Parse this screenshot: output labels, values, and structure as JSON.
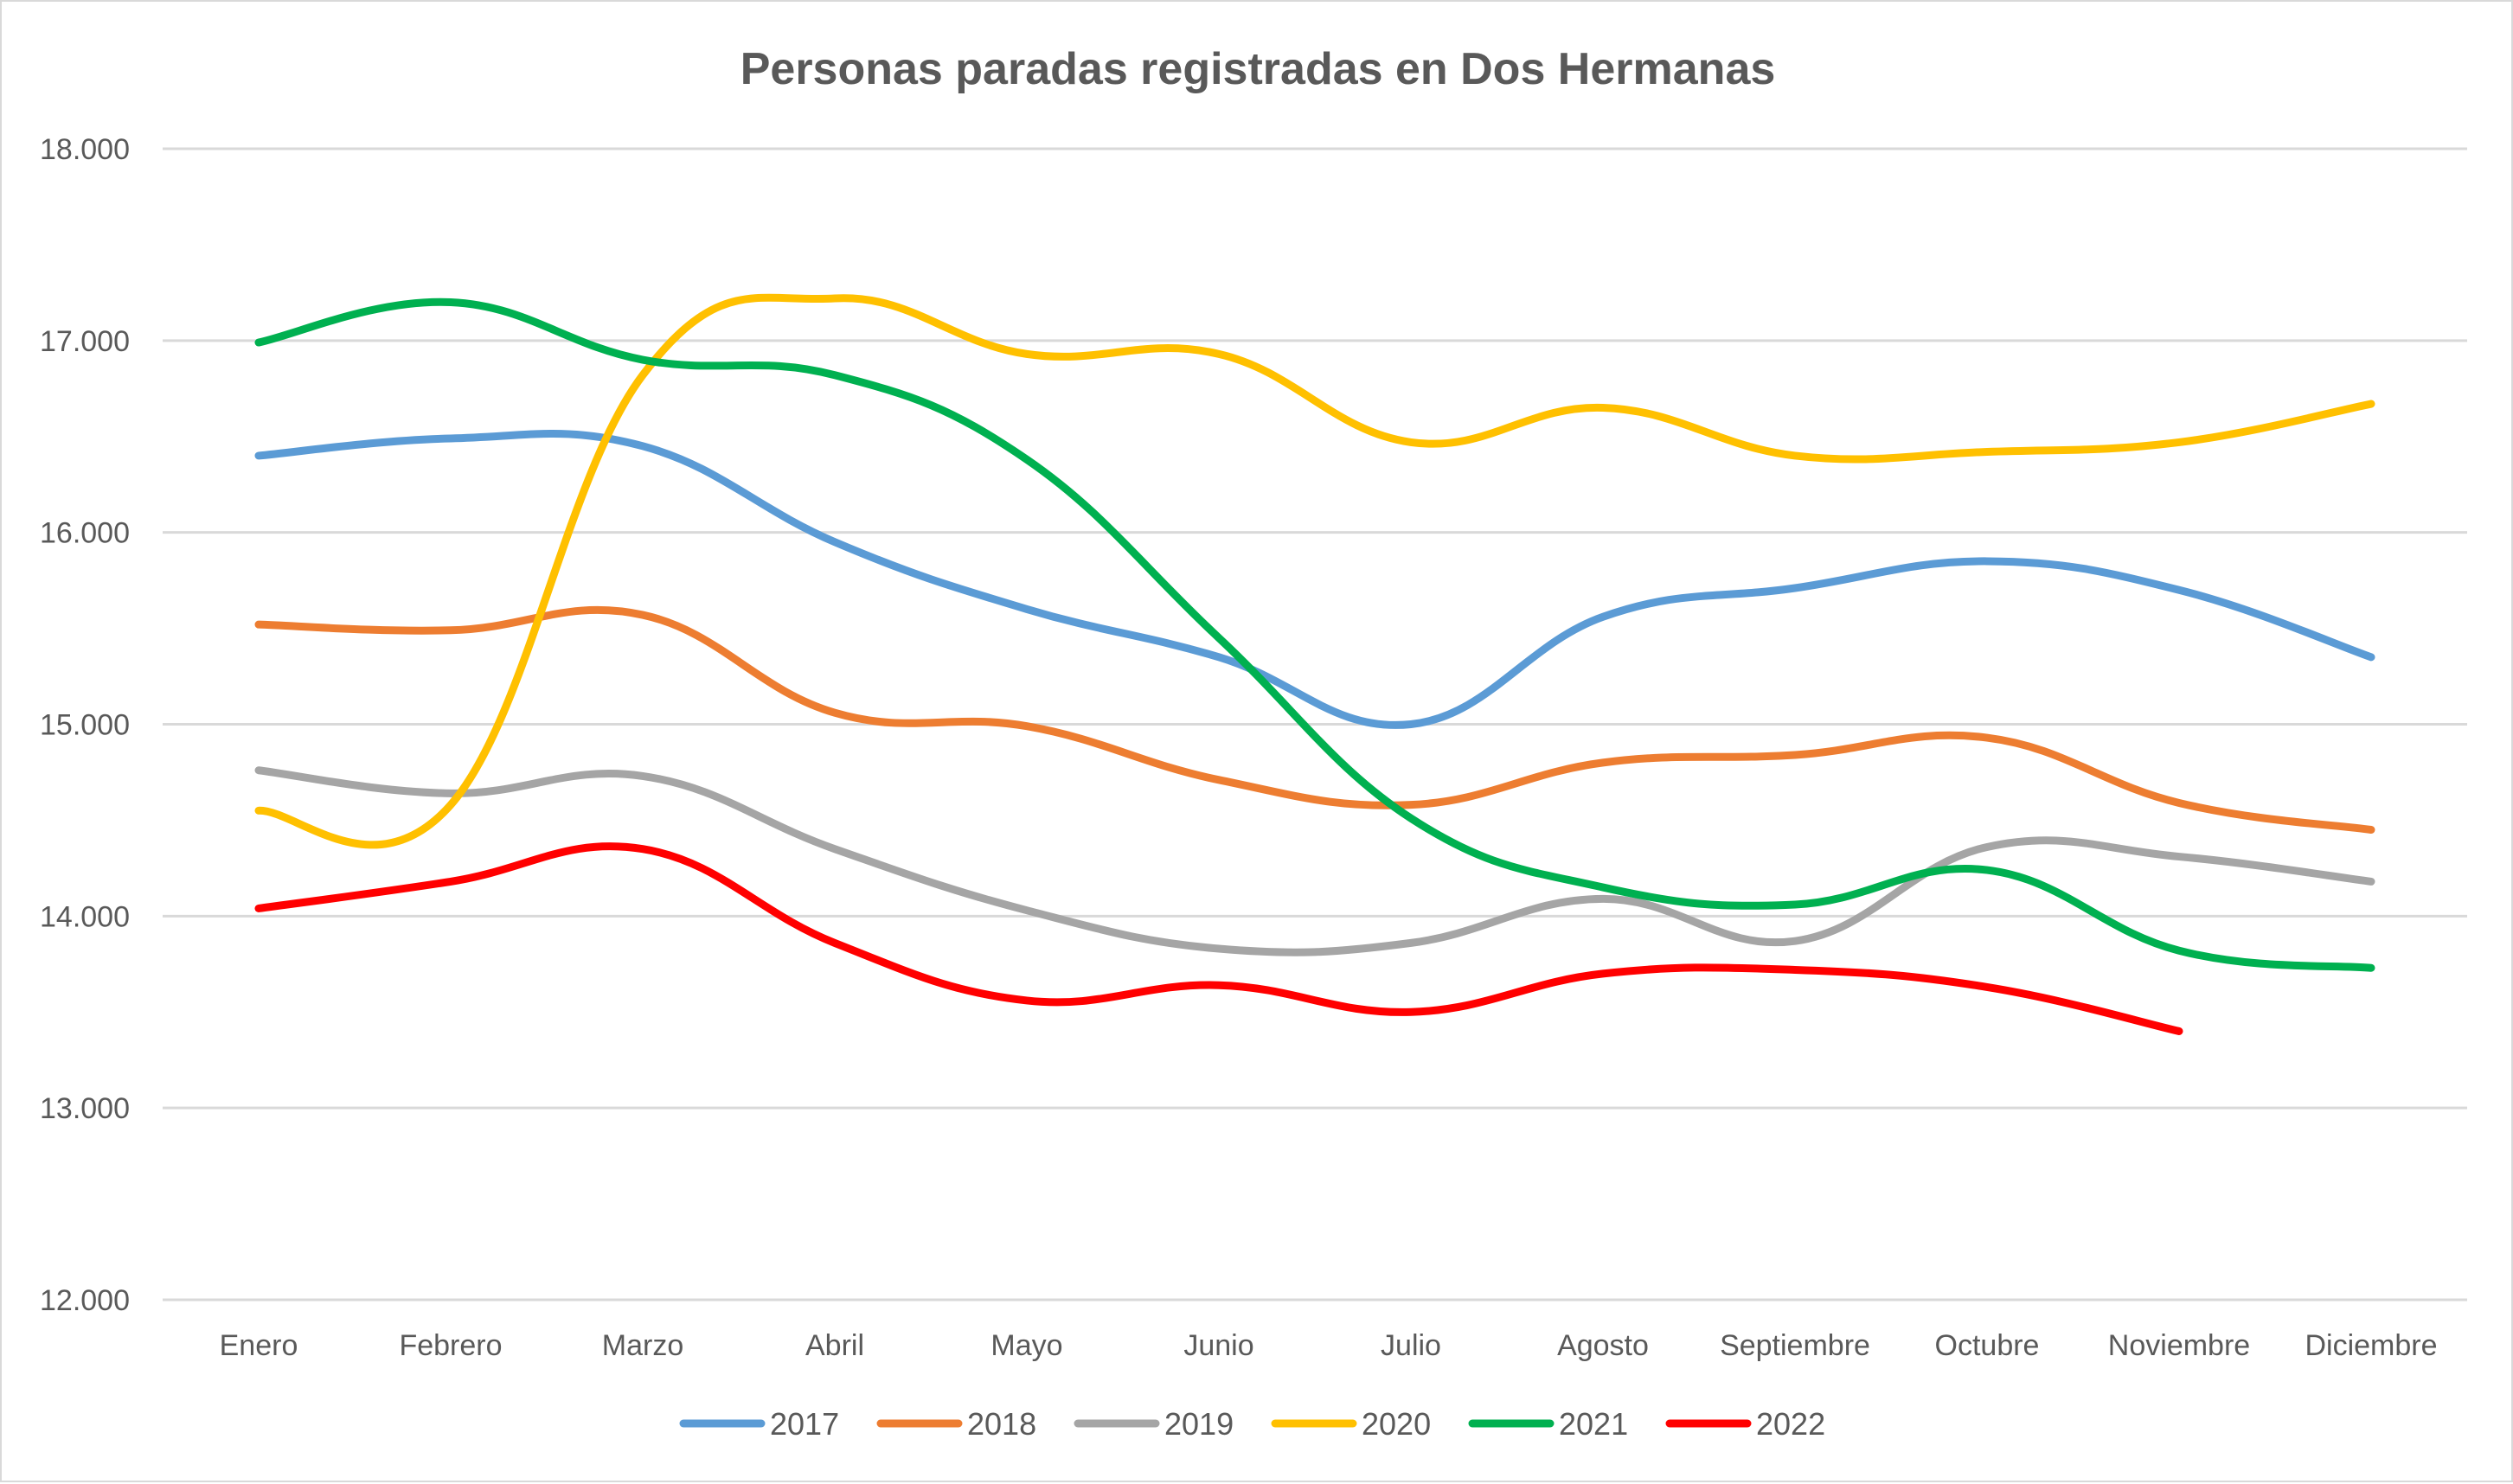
{
  "chart_data": {
    "type": "line",
    "title": "Personas paradas registradas en Dos Hermanas",
    "xlabel": "",
    "ylabel": "",
    "categories": [
      "Enero",
      "Febrero",
      "Marzo",
      "Abril",
      "Mayo",
      "Junio",
      "Julio",
      "Agosto",
      "Septiembre",
      "Octubre",
      "Noviembre",
      "Diciembre"
    ],
    "ylim": [
      12000,
      18000
    ],
    "yticks": [
      12000,
      13000,
      14000,
      15000,
      16000,
      17000,
      18000
    ],
    "ytick_labels": [
      "12.000",
      "13.000",
      "14.000",
      "15.000",
      "16.000",
      "17.000",
      "18.000"
    ],
    "grid": true,
    "legend_position": "bottom",
    "series": [
      {
        "name": "2017",
        "color": "#5B9BD5",
        "values": [
          16400,
          16490,
          16450,
          15950,
          15600,
          15350,
          15000,
          15560,
          15710,
          15850,
          15700,
          15350
        ]
      },
      {
        "name": "2018",
        "color": "#ED7D31",
        "values": [
          15520,
          15490,
          15570,
          15060,
          14990,
          14710,
          14580,
          14800,
          14840,
          14930,
          14590,
          14450
        ]
      },
      {
        "name": "2019",
        "color": "#A5A5A5",
        "values": [
          14760,
          14640,
          14730,
          14350,
          14030,
          13830,
          13860,
          14090,
          13870,
          14360,
          14310,
          14180
        ]
      },
      {
        "name": "2020",
        "color": "#FFC000",
        "values": [
          14550,
          14580,
          16820,
          17220,
          16930,
          16930,
          16470,
          16650,
          16400,
          16420,
          16470,
          16670
        ]
      },
      {
        "name": "2021",
        "color": "#00B050",
        "values": [
          16990,
          17200,
          16900,
          16820,
          16380,
          15450,
          14510,
          14150,
          14060,
          14240,
          13820,
          13730
        ]
      },
      {
        "name": "2022",
        "color": "#FF0000",
        "values": [
          14040,
          14180,
          14350,
          13860,
          13560,
          13640,
          13500,
          13700,
          13720,
          13630,
          13400,
          null
        ]
      }
    ]
  }
}
